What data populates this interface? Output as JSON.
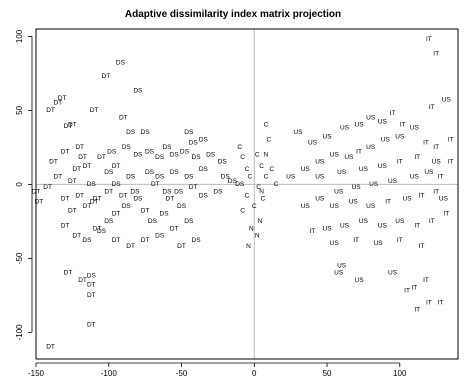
{
  "chart_data": {
    "type": "scatter",
    "title": "Adaptive dissimilarity index matrix projection",
    "xlabel": "",
    "ylabel": "",
    "xlim": [
      -150,
      140
    ],
    "ylim": [
      -118,
      105
    ],
    "xticks": [
      -150,
      -100,
      -50,
      0,
      50,
      100
    ],
    "yticks": [
      -100,
      -50,
      0,
      50,
      100
    ],
    "reference_lines": {
      "x": 0,
      "y": 0,
      "color": "#bbbbbb"
    },
    "grid": false,
    "legend": "none",
    "points": [
      {
        "label": "DT",
        "x": -140,
        "y": -110
      },
      {
        "label": "DT",
        "x": -112,
        "y": -95
      },
      {
        "label": "DT",
        "x": -128,
        "y": -60
      },
      {
        "label": "DS",
        "x": -112,
        "y": -62
      },
      {
        "label": "DT",
        "x": -118,
        "y": -65
      },
      {
        "label": "DT",
        "x": -112,
        "y": -68
      },
      {
        "label": "DT",
        "x": -112,
        "y": -75
      },
      {
        "label": "DT",
        "x": -150,
        "y": -5
      },
      {
        "label": "DT",
        "x": -148,
        "y": -12
      },
      {
        "label": "DT",
        "x": -142,
        "y": -2
      },
      {
        "label": "DT",
        "x": -135,
        "y": 5
      },
      {
        "label": "DT",
        "x": -138,
        "y": 15
      },
      {
        "label": "DT",
        "x": -130,
        "y": 22
      },
      {
        "label": "DT",
        "x": -125,
        "y": 2
      },
      {
        "label": "DT",
        "x": -122,
        "y": 10
      },
      {
        "label": "DT",
        "x": -120,
        "y": 25
      },
      {
        "label": "DT",
        "x": -118,
        "y": 18
      },
      {
        "label": "DT",
        "x": -135,
        "y": 55
      },
      {
        "label": "DT",
        "x": -132,
        "y": 58
      },
      {
        "label": "DT",
        "x": -140,
        "y": 50
      },
      {
        "label": "DT",
        "x": -125,
        "y": 40
      },
      {
        "label": "DT",
        "x": -128,
        "y": 39
      },
      {
        "label": "DT",
        "x": -110,
        "y": 50
      },
      {
        "label": "DT",
        "x": -102,
        "y": 73
      },
      {
        "label": "DS",
        "x": -92,
        "y": 82
      },
      {
        "label": "DS",
        "x": -80,
        "y": 63
      },
      {
        "label": "DT",
        "x": -90,
        "y": 45
      },
      {
        "label": "DS",
        "x": -85,
        "y": 35
      },
      {
        "label": "DS",
        "x": -75,
        "y": 35
      },
      {
        "label": "DS",
        "x": -45,
        "y": 35
      },
      {
        "label": "DS",
        "x": -42,
        "y": 28
      },
      {
        "label": "DS",
        "x": -35,
        "y": 30
      },
      {
        "label": "DS",
        "x": -30,
        "y": 20
      },
      {
        "label": "DS",
        "x": -22,
        "y": 15
      },
      {
        "label": "DS",
        "x": -20,
        "y": 5
      },
      {
        "label": "DS",
        "x": -15,
        "y": 2
      },
      {
        "label": "DS",
        "x": -10,
        "y": 0
      },
      {
        "label": "DT",
        "x": -115,
        "y": 12
      },
      {
        "label": "DT",
        "x": -105,
        "y": 18
      },
      {
        "label": "DS",
        "x": -98,
        "y": 22
      },
      {
        "label": "DT",
        "x": -95,
        "y": 12
      },
      {
        "label": "DS",
        "x": -88,
        "y": 25
      },
      {
        "label": "DS",
        "x": -80,
        "y": 20
      },
      {
        "label": "DS",
        "x": -72,
        "y": 22
      },
      {
        "label": "DS",
        "x": -65,
        "y": 18
      },
      {
        "label": "DS",
        "x": -60,
        "y": 25
      },
      {
        "label": "DS",
        "x": -55,
        "y": 20
      },
      {
        "label": "DS",
        "x": -48,
        "y": 22
      },
      {
        "label": "DS",
        "x": -40,
        "y": 18
      },
      {
        "label": "DS",
        "x": -35,
        "y": 10
      },
      {
        "label": "DS",
        "x": -45,
        "y": 5
      },
      {
        "label": "DS",
        "x": -55,
        "y": 8
      },
      {
        "label": "DS",
        "x": -65,
        "y": 5
      },
      {
        "label": "DS",
        "x": -72,
        "y": 8
      },
      {
        "label": "DS",
        "x": -85,
        "y": 5
      },
      {
        "label": "DS",
        "x": -95,
        "y": 0
      },
      {
        "label": "DT",
        "x": -100,
        "y": -5
      },
      {
        "label": "DT",
        "x": -108,
        "y": -10
      },
      {
        "label": "DT",
        "x": -115,
        "y": -15
      },
      {
        "label": "DT",
        "x": -120,
        "y": -8
      },
      {
        "label": "DT",
        "x": -125,
        "y": -18
      },
      {
        "label": "DT",
        "x": -130,
        "y": -28
      },
      {
        "label": "DT",
        "x": -122,
        "y": -35
      },
      {
        "label": "DS",
        "x": -115,
        "y": -38
      },
      {
        "label": "DT",
        "x": -108,
        "y": -30
      },
      {
        "label": "DS",
        "x": -100,
        "y": -25
      },
      {
        "label": "DT",
        "x": -95,
        "y": -20
      },
      {
        "label": "DS",
        "x": -88,
        "y": -15
      },
      {
        "label": "DS",
        "x": -80,
        "y": -10
      },
      {
        "label": "DT",
        "x": -75,
        "y": -18
      },
      {
        "label": "DS",
        "x": -70,
        "y": -25
      },
      {
        "label": "DS",
        "x": -62,
        "y": -20
      },
      {
        "label": "DT",
        "x": -58,
        "y": -10
      },
      {
        "label": "DS",
        "x": -50,
        "y": -15
      },
      {
        "label": "DS",
        "x": -45,
        "y": -25
      },
      {
        "label": "DT",
        "x": -55,
        "y": -30
      },
      {
        "label": "DS",
        "x": -65,
        "y": -35
      },
      {
        "label": "DT",
        "x": -75,
        "y": -38
      },
      {
        "label": "DT",
        "x": -85,
        "y": -42
      },
      {
        "label": "DT",
        "x": -95,
        "y": -38
      },
      {
        "label": "DS",
        "x": -105,
        "y": -32
      },
      {
        "label": "DT",
        "x": -50,
        "y": -42
      },
      {
        "label": "DS",
        "x": -40,
        "y": -38
      },
      {
        "label": "DS",
        "x": -82,
        "y": -5
      },
      {
        "label": "DS",
        "x": -60,
        "y": -5
      },
      {
        "label": "DT",
        "x": -110,
        "y": -12
      },
      {
        "label": "DS",
        "x": -100,
        "y": 8
      },
      {
        "label": "DS",
        "x": -35,
        "y": -8
      },
      {
        "label": "DS",
        "x": -25,
        "y": -5
      },
      {
        "label": "DT",
        "x": -42,
        "y": -2
      },
      {
        "label": "DS",
        "x": -52,
        "y": -5
      },
      {
        "label": "DT",
        "x": -68,
        "y": 0
      },
      {
        "label": "DT",
        "x": -90,
        "y": -8
      },
      {
        "label": "DS",
        "x": -112,
        "y": 0
      },
      {
        "label": "DT",
        "x": -130,
        "y": -10
      },
      {
        "label": "C",
        "x": 8,
        "y": 40
      },
      {
        "label": "C",
        "x": -10,
        "y": 25
      },
      {
        "label": "C",
        "x": -8,
        "y": 18
      },
      {
        "label": "C",
        "x": 10,
        "y": 30
      },
      {
        "label": "C",
        "x": -5,
        "y": 10
      },
      {
        "label": "C",
        "x": 2,
        "y": 20
      },
      {
        "label": "C",
        "x": 5,
        "y": 12
      },
      {
        "label": "C",
        "x": 8,
        "y": 5
      },
      {
        "label": "C",
        "x": -3,
        "y": 5
      },
      {
        "label": "C",
        "x": 3,
        "y": -2
      },
      {
        "label": "C",
        "x": -5,
        "y": -8
      },
      {
        "label": "C",
        "x": 0,
        "y": -15
      },
      {
        "label": "C",
        "x": -8,
        "y": -18
      },
      {
        "label": "C",
        "x": 6,
        "y": -10
      },
      {
        "label": "C",
        "x": 12,
        "y": 10
      },
      {
        "label": "C",
        "x": 15,
        "y": 0
      },
      {
        "label": "N",
        "x": -2,
        "y": -30
      },
      {
        "label": "N",
        "x": 2,
        "y": -35
      },
      {
        "label": "N",
        "x": -4,
        "y": -42
      },
      {
        "label": "N",
        "x": 4,
        "y": -25
      },
      {
        "label": "N",
        "x": 8,
        "y": 20
      },
      {
        "label": "N",
        "x": 5,
        "y": -5
      },
      {
        "label": "IT",
        "x": 120,
        "y": 98
      },
      {
        "label": "IT",
        "x": 125,
        "y": 88
      },
      {
        "label": "US",
        "x": 132,
        "y": 57
      },
      {
        "label": "IT",
        "x": 122,
        "y": 52
      },
      {
        "label": "IT",
        "x": 135,
        "y": 30
      },
      {
        "label": "IT",
        "x": 125,
        "y": 25
      },
      {
        "label": "IT",
        "x": 135,
        "y": 15
      },
      {
        "label": "US",
        "x": 30,
        "y": 35
      },
      {
        "label": "US",
        "x": 40,
        "y": 28
      },
      {
        "label": "US",
        "x": 50,
        "y": 32
      },
      {
        "label": "US",
        "x": 62,
        "y": 38
      },
      {
        "label": "US",
        "x": 72,
        "y": 40
      },
      {
        "label": "US",
        "x": 80,
        "y": 45
      },
      {
        "label": "US",
        "x": 88,
        "y": 42
      },
      {
        "label": "IT",
        "x": 95,
        "y": 48
      },
      {
        "label": "IT",
        "x": 102,
        "y": 40
      },
      {
        "label": "US",
        "x": 110,
        "y": 38
      },
      {
        "label": "IT",
        "x": 118,
        "y": 28
      },
      {
        "label": "US",
        "x": 100,
        "y": 32
      },
      {
        "label": "US",
        "x": 90,
        "y": 30
      },
      {
        "label": "US",
        "x": 80,
        "y": 25
      },
      {
        "label": "IT",
        "x": 72,
        "y": 22
      },
      {
        "label": "US",
        "x": 65,
        "y": 18
      },
      {
        "label": "US",
        "x": 55,
        "y": 20
      },
      {
        "label": "US",
        "x": 45,
        "y": 15
      },
      {
        "label": "US",
        "x": 35,
        "y": 10
      },
      {
        "label": "US",
        "x": 25,
        "y": 5
      },
      {
        "label": "US",
        "x": 45,
        "y": 5
      },
      {
        "label": "US",
        "x": 60,
        "y": 8
      },
      {
        "label": "US",
        "x": 75,
        "y": 10
      },
      {
        "label": "US",
        "x": 88,
        "y": 12
      },
      {
        "label": "IT",
        "x": 100,
        "y": 15
      },
      {
        "label": "IT",
        "x": 112,
        "y": 18
      },
      {
        "label": "US",
        "x": 120,
        "y": 8
      },
      {
        "label": "IT",
        "x": 128,
        "y": 5
      },
      {
        "label": "US",
        "x": 110,
        "y": 5
      },
      {
        "label": "US",
        "x": 95,
        "y": 2
      },
      {
        "label": "US",
        "x": 82,
        "y": 0
      },
      {
        "label": "US",
        "x": 70,
        "y": -2
      },
      {
        "label": "US",
        "x": 58,
        "y": -5
      },
      {
        "label": "US",
        "x": 45,
        "y": -10
      },
      {
        "label": "US",
        "x": 35,
        "y": -15
      },
      {
        "label": "US",
        "x": 55,
        "y": -15
      },
      {
        "label": "US",
        "x": 68,
        "y": -12
      },
      {
        "label": "US",
        "x": 80,
        "y": -15
      },
      {
        "label": "IT",
        "x": 92,
        "y": -12
      },
      {
        "label": "US",
        "x": 105,
        "y": -10
      },
      {
        "label": "IT",
        "x": 115,
        "y": -8
      },
      {
        "label": "IT",
        "x": 125,
        "y": -5
      },
      {
        "label": "IT",
        "x": 132,
        "y": -20
      },
      {
        "label": "IT",
        "x": 122,
        "y": -25
      },
      {
        "label": "IT",
        "x": 112,
        "y": -28
      },
      {
        "label": "US",
        "x": 100,
        "y": -25
      },
      {
        "label": "US",
        "x": 88,
        "y": -28
      },
      {
        "label": "US",
        "x": 75,
        "y": -25
      },
      {
        "label": "US",
        "x": 62,
        "y": -28
      },
      {
        "label": "US",
        "x": 50,
        "y": -30
      },
      {
        "label": "IT",
        "x": 40,
        "y": -32
      },
      {
        "label": "US",
        "x": 55,
        "y": -40
      },
      {
        "label": "IT",
        "x": 70,
        "y": -38
      },
      {
        "label": "US",
        "x": 85,
        "y": -40
      },
      {
        "label": "IT",
        "x": 100,
        "y": -38
      },
      {
        "label": "IT",
        "x": 115,
        "y": -42
      },
      {
        "label": "US",
        "x": 60,
        "y": -55
      },
      {
        "label": "US",
        "x": 58,
        "y": -60
      },
      {
        "label": "US",
        "x": 72,
        "y": -65
      },
      {
        "label": "US",
        "x": 95,
        "y": -60
      },
      {
        "label": "IT",
        "x": 105,
        "y": -72
      },
      {
        "label": "IT",
        "x": 110,
        "y": -70
      },
      {
        "label": "IT",
        "x": 118,
        "y": -65
      },
      {
        "label": "IT",
        "x": 120,
        "y": -80
      },
      {
        "label": "IT",
        "x": 128,
        "y": -80
      },
      {
        "label": "IT",
        "x": 112,
        "y": -85
      },
      {
        "label": "US",
        "x": 130,
        "y": -10
      },
      {
        "label": "US",
        "x": 125,
        "y": 15
      }
    ]
  }
}
